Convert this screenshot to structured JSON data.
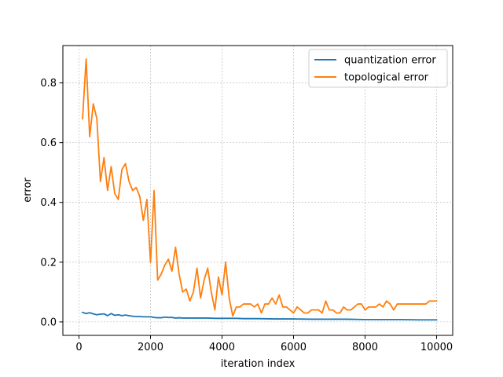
{
  "chart_data": {
    "type": "line",
    "xlabel": "iteration index",
    "ylabel": "error",
    "xlim": [
      -450,
      10450
    ],
    "ylim": [
      -0.045,
      0.925
    ],
    "xticks": [
      0,
      2000,
      4000,
      6000,
      8000,
      10000
    ],
    "yticks": [
      0.0,
      0.2,
      0.4,
      0.6,
      0.8
    ],
    "grid": true,
    "legend_position": "top-right",
    "series": [
      {
        "name": "quantization error",
        "color": "#1f77b4",
        "x": [
          100,
          200,
          300,
          400,
          500,
          600,
          700,
          800,
          900,
          1000,
          1100,
          1200,
          1300,
          1400,
          1500,
          1600,
          1700,
          1800,
          1900,
          2000,
          2100,
          2200,
          2300,
          2400,
          2500,
          2600,
          2700,
          2800,
          2900,
          3000,
          3200,
          3400,
          3600,
          3800,
          4000,
          4200,
          4400,
          4600,
          4800,
          5000,
          5500,
          6000,
          6500,
          7000,
          7500,
          8000,
          8500,
          9000,
          9500,
          10000
        ],
        "y": [
          0.032,
          0.028,
          0.031,
          0.027,
          0.024,
          0.026,
          0.027,
          0.021,
          0.028,
          0.022,
          0.024,
          0.021,
          0.023,
          0.021,
          0.019,
          0.018,
          0.018,
          0.017,
          0.017,
          0.017,
          0.015,
          0.014,
          0.014,
          0.016,
          0.015,
          0.015,
          0.013,
          0.014,
          0.013,
          0.013,
          0.013,
          0.013,
          0.013,
          0.012,
          0.012,
          0.012,
          0.012,
          0.011,
          0.011,
          0.011,
          0.01,
          0.01,
          0.009,
          0.009,
          0.009,
          0.008,
          0.008,
          0.008,
          0.007,
          0.007
        ]
      },
      {
        "name": "topological error",
        "color": "#ff7f0e",
        "x": [
          100,
          200,
          300,
          400,
          500,
          600,
          700,
          800,
          900,
          1000,
          1100,
          1200,
          1300,
          1400,
          1500,
          1600,
          1700,
          1800,
          1900,
          2000,
          2100,
          2200,
          2300,
          2400,
          2500,
          2600,
          2700,
          2800,
          2900,
          3000,
          3100,
          3200,
          3300,
          3400,
          3500,
          3600,
          3700,
          3800,
          3900,
          4000,
          4100,
          4200,
          4300,
          4400,
          4500,
          4600,
          4700,
          4800,
          4900,
          5000,
          5100,
          5200,
          5300,
          5400,
          5500,
          5600,
          5700,
          5800,
          5900,
          6000,
          6100,
          6200,
          6300,
          6400,
          6500,
          6600,
          6700,
          6800,
          6900,
          7000,
          7100,
          7200,
          7300,
          7400,
          7500,
          7600,
          7700,
          7800,
          7900,
          8000,
          8100,
          8200,
          8300,
          8400,
          8500,
          8600,
          8700,
          8800,
          8900,
          9000,
          9100,
          9200,
          9300,
          9400,
          9500,
          9600,
          9700,
          9800,
          9900,
          10000
        ],
        "y": [
          0.68,
          0.88,
          0.62,
          0.73,
          0.68,
          0.47,
          0.55,
          0.44,
          0.52,
          0.43,
          0.41,
          0.51,
          0.53,
          0.47,
          0.44,
          0.45,
          0.42,
          0.34,
          0.41,
          0.2,
          0.44,
          0.14,
          0.16,
          0.19,
          0.21,
          0.17,
          0.25,
          0.16,
          0.1,
          0.11,
          0.07,
          0.1,
          0.18,
          0.08,
          0.14,
          0.18,
          0.1,
          0.04,
          0.15,
          0.09,
          0.2,
          0.08,
          0.02,
          0.05,
          0.05,
          0.06,
          0.06,
          0.06,
          0.05,
          0.06,
          0.03,
          0.06,
          0.06,
          0.08,
          0.06,
          0.09,
          0.05,
          0.05,
          0.04,
          0.03,
          0.05,
          0.04,
          0.03,
          0.03,
          0.04,
          0.04,
          0.04,
          0.03,
          0.07,
          0.04,
          0.04,
          0.03,
          0.03,
          0.05,
          0.04,
          0.04,
          0.05,
          0.06,
          0.06,
          0.04,
          0.05,
          0.05,
          0.05,
          0.06,
          0.05,
          0.07,
          0.06,
          0.04,
          0.06,
          0.06,
          0.06,
          0.06,
          0.06,
          0.06,
          0.06,
          0.06,
          0.06,
          0.07,
          0.07,
          0.07
        ]
      }
    ]
  }
}
